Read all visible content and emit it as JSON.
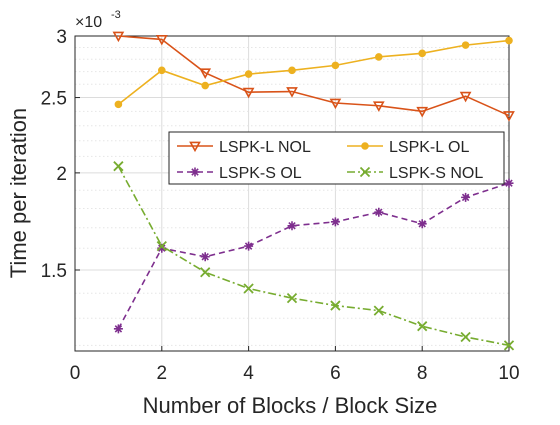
{
  "chart_data": {
    "type": "line",
    "xlabel": "Number of Blocks / Block Size",
    "ylabel": "Time per iteration",
    "y_multiplier": {
      "base": "×10",
      "exponent": "-3"
    },
    "xlim": [
      0,
      10
    ],
    "ylim": [
      1.18,
      3.0
    ],
    "y_scale": "log",
    "x_ticks": [
      0,
      2,
      4,
      6,
      8,
      10
    ],
    "x_tick_labels": [
      "0",
      "2",
      "4",
      "6",
      "8",
      "10"
    ],
    "y_ticks": [
      1.5,
      2,
      2.5,
      3
    ],
    "y_tick_labels": [
      "1.5",
      "2",
      "2.5",
      "3"
    ],
    "grid": true,
    "minor_grid": true,
    "legend_position": "center-right",
    "x": [
      1,
      2,
      3,
      4,
      5,
      6,
      7,
      8,
      9,
      10
    ],
    "series": [
      {
        "name": "LSPK-L NOL",
        "values": [
          3.0,
          2.97,
          2.69,
          2.54,
          2.545,
          2.46,
          2.44,
          2.4,
          2.51,
          2.37
        ],
        "color": "#D95319",
        "marker": "triangle-down",
        "dash": "solid"
      },
      {
        "name": "LSPK-L OL",
        "values": [
          2.45,
          2.71,
          2.59,
          2.68,
          2.71,
          2.75,
          2.82,
          2.85,
          2.92,
          2.96
        ],
        "color": "#EDB120",
        "marker": "circle",
        "dash": "solid"
      },
      {
        "name": "LSPK-S OL",
        "values": [
          1.26,
          1.6,
          1.56,
          1.61,
          1.71,
          1.73,
          1.78,
          1.72,
          1.86,
          1.94
        ],
        "color": "#7E2F8E",
        "marker": "star",
        "dash": "dashed"
      },
      {
        "name": "LSPK-S NOL",
        "values": [
          2.04,
          1.61,
          1.49,
          1.42,
          1.38,
          1.35,
          1.33,
          1.27,
          1.23,
          1.2
        ],
        "color": "#77AC30",
        "marker": "x",
        "dash": "dashdot"
      }
    ]
  }
}
